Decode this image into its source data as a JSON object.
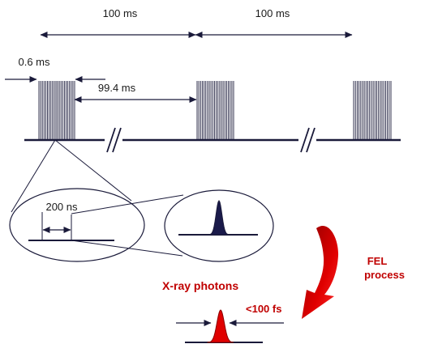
{
  "labels": {
    "period_1": "100 ms",
    "period_2": "100 ms",
    "train_length": "0.6 ms",
    "gap": "99.4 ms",
    "bunch_spacing": "200 ns",
    "fel_line1": "FEL",
    "fel_line2": "process",
    "xray": "X-ray photons",
    "pulse_length": "<100 fs"
  },
  "colors": {
    "line": "#1a1a3a",
    "pulse_fill": "#1a1a4a",
    "accent": "#c00000",
    "xray_fill": "#e00000"
  }
}
